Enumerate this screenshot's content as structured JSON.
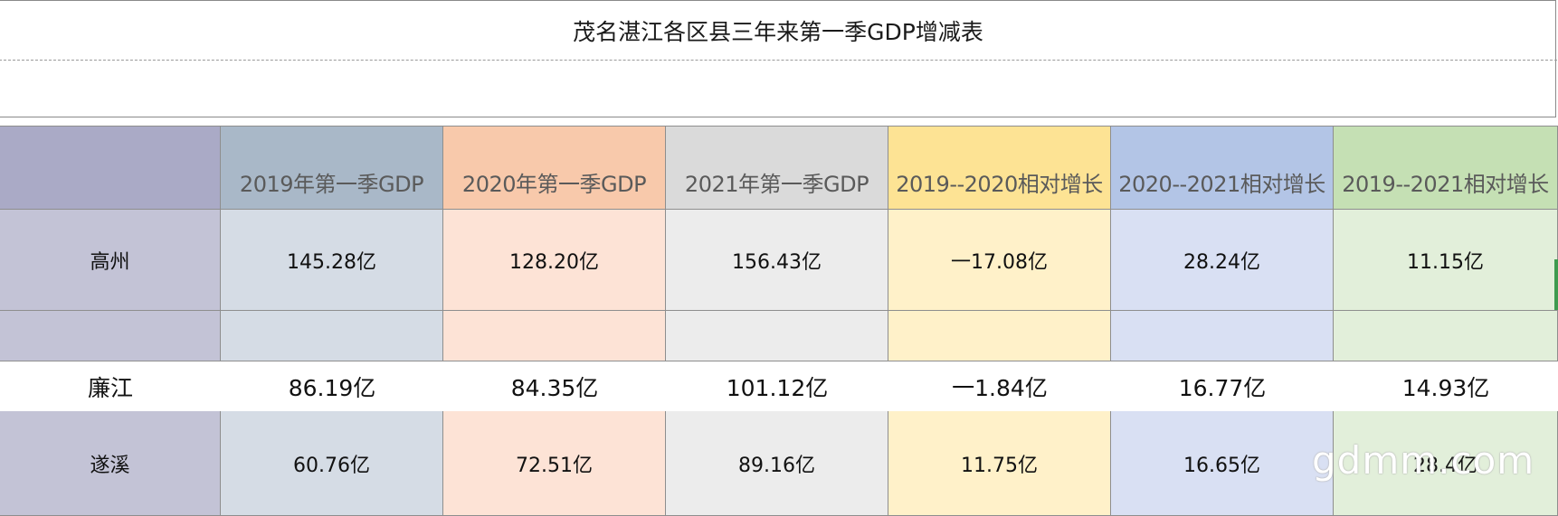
{
  "title": "茂名湛江各区县三年来第一季GDP增减表",
  "header": {
    "corner": "",
    "columns": [
      {
        "label": "2019年第一季GDP",
        "color": "#a9b8c8"
      },
      {
        "label": "2020年第一季GDP",
        "color": "#f8c9ab"
      },
      {
        "label": "2021年第一季GDP",
        "color": "#dadada"
      },
      {
        "label": "2019--2020相对增长",
        "color": "#fde394"
      },
      {
        "label": "2020--2021相对增长",
        "color": "#b3c5e6"
      },
      {
        "label": "2019--2021相对增长",
        "color": "#c5e0b4"
      }
    ],
    "corner_color": "#aaaac6"
  },
  "rows": [
    {
      "name": "高州",
      "values": [
        "145.28亿",
        "128.20亿",
        "156.43亿",
        "一17.08亿",
        "28.24亿",
        "11.15亿"
      ]
    },
    {
      "name": "",
      "values": [
        "",
        "",
        "",
        "",
        "",
        ""
      ]
    },
    {
      "name": "廉江",
      "values": [
        "86.19亿",
        "84.35亿",
        "101.12亿",
        "一1.84亿",
        "16.77亿",
        "14.93亿"
      ]
    },
    {
      "name": "遂溪",
      "values": [
        "60.76亿",
        "72.51亿",
        "89.16亿",
        "11.75亿",
        "16.65亿",
        "28.4亿"
      ]
    }
  ],
  "row_colors": {
    "name": "#c3c3d6",
    "columns": [
      "#d5dce5",
      "#fde3d6",
      "#ececec",
      "#fff1c9",
      "#d9e0f3",
      "#e2efda"
    ]
  },
  "watermark": "gdmm.com"
}
